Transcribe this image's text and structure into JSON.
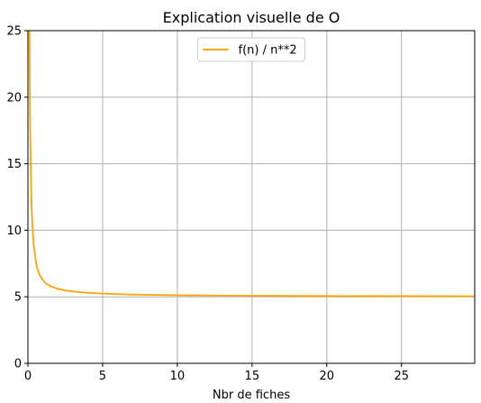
{
  "chart_data": {
    "type": "line",
    "title": "Explication visuelle de O",
    "xlabel": "Nbr de fiches",
    "ylabel": "",
    "xlim": [
      0,
      29.9
    ],
    "ylim": [
      0,
      25
    ],
    "xticks": [
      0,
      5,
      10,
      15,
      20,
      25
    ],
    "yticks": [
      0,
      5,
      10,
      15,
      20,
      25
    ],
    "grid": true,
    "legend_position": "top-center",
    "series": [
      {
        "name": "f(n) / n**2",
        "color": "#ffa500",
        "x": [
          0.1,
          0.12,
          0.15,
          0.2,
          0.25,
          0.3,
          0.4,
          0.5,
          0.6,
          0.7,
          0.8,
          1.0,
          1.2,
          1.5,
          2,
          2.5,
          3,
          4,
          5,
          6,
          7,
          8,
          10,
          12,
          15,
          20,
          25,
          29.9
        ],
        "y": [
          25,
          21.7,
          17.7,
          14.0,
          11.7,
          10.4,
          8.75,
          7.9,
          7.2,
          6.9,
          6.6,
          6.25,
          6.0,
          5.8,
          5.6,
          5.48,
          5.4,
          5.3,
          5.24,
          5.2,
          5.17,
          5.15,
          5.12,
          5.1,
          5.08,
          5.06,
          5.05,
          5.04
        ]
      }
    ]
  }
}
